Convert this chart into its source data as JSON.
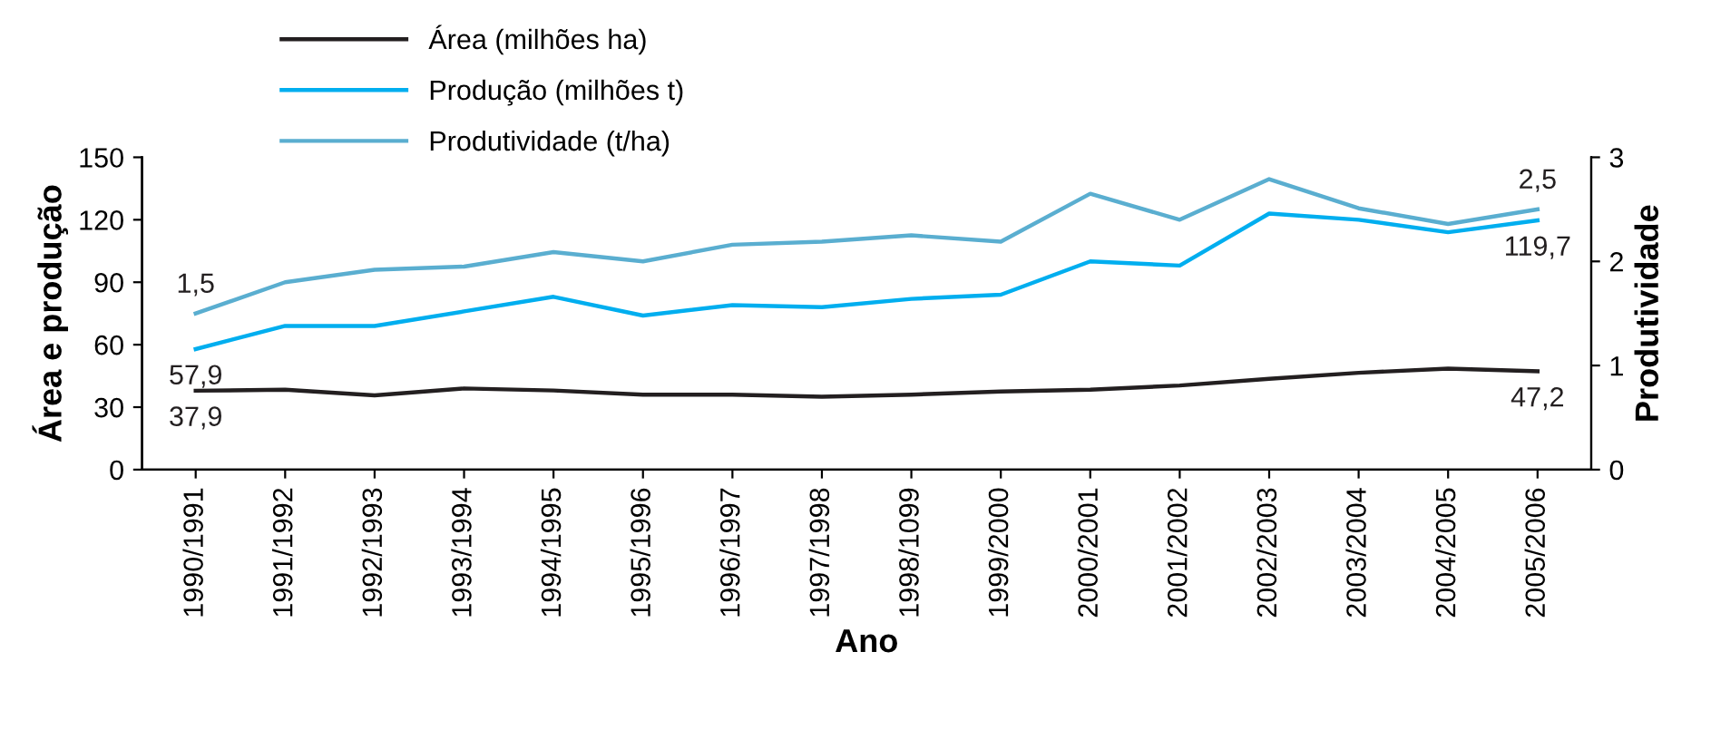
{
  "chart_data": {
    "type": "line",
    "xlabel": "Ano",
    "ylabel": "Área e produção",
    "y2label": "Produtividade",
    "categories": [
      "1990/1991",
      "1991/1992",
      "1992/1993",
      "1993/1994",
      "1994/1995",
      "1995/1996",
      "1996/1997",
      "1997/1998",
      "1998/1099",
      "1999/2000",
      "2000/2001",
      "2001/2002",
      "2002/2003",
      "2003/2004",
      "2004/2005",
      "2005/2006"
    ],
    "series": [
      {
        "name": "Área (milhões ha)",
        "color": "#231f20",
        "values": [
          37.9,
          38.4,
          35.7,
          39,
          38,
          36,
          36,
          35,
          36,
          37.5,
          38.4,
          40.4,
          43.6,
          46.5,
          48.5,
          47.2
        ],
        "value_labels": [
          "37,9",
          null,
          null,
          null,
          null,
          null,
          null,
          null,
          null,
          null,
          null,
          null,
          null,
          null,
          null,
          "47,2"
        ]
      },
      {
        "name": "Produção (milhões t)",
        "color": "#00aeef",
        "values": [
          57.9,
          69,
          69,
          76,
          83,
          74,
          79,
          78,
          82,
          84,
          100,
          98,
          123,
          120,
          114,
          119.7
        ],
        "value_labels": [
          "57,9",
          null,
          null,
          null,
          null,
          null,
          null,
          null,
          null,
          null,
          null,
          null,
          null,
          null,
          null,
          "119,7"
        ]
      },
      {
        "name": "Produtividade (t/ha)",
        "color": "#5aaed0",
        "axis": "y2",
        "values": [
          1.5,
          1.8,
          1.92,
          1.95,
          2.09,
          2.0,
          2.16,
          2.19,
          2.25,
          2.19,
          2.65,
          2.4,
          2.79,
          2.51,
          2.36,
          2.5
        ],
        "value_labels": [
          "1,5",
          null,
          null,
          null,
          null,
          null,
          null,
          null,
          null,
          null,
          null,
          null,
          null,
          null,
          null,
          "2,5"
        ]
      }
    ],
    "ylim": [
      0,
      150
    ],
    "yticks": [
      0,
      30,
      60,
      90,
      120,
      150
    ],
    "y2lim": [
      0,
      3
    ],
    "y2ticks": [
      0,
      1,
      2,
      3
    ],
    "grid": false,
    "legend": "top left",
    "marker": "none",
    "line_style": "solid"
  }
}
